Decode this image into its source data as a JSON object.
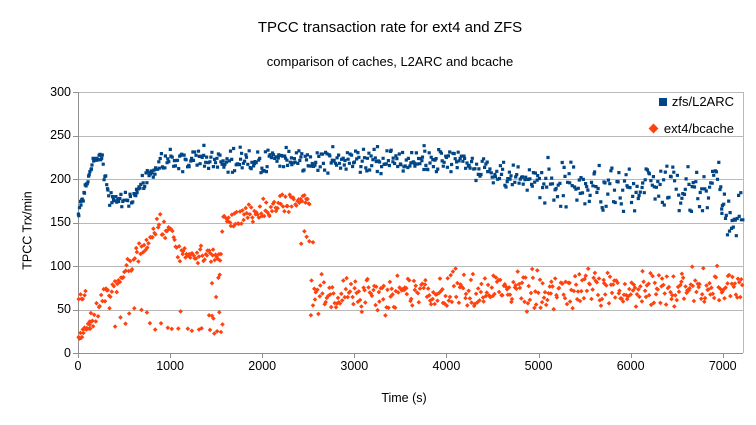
{
  "title": "TPCC transaction rate for ext4 and ZFS",
  "subtitle": "comparison of caches, L2ARC and bcache",
  "chart_data": {
    "type": "scatter",
    "title": "TPCC transaction rate for ext4 and ZFS",
    "subtitle": "comparison of caches, L2ARC and bcache",
    "xlabel": "Time (s)",
    "ylabel": "TPCC Trx/min",
    "xlim": [
      0,
      7220
    ],
    "ylim": [
      0,
      300
    ],
    "x_ticks": [
      0,
      1000,
      2000,
      3000,
      4000,
      5000,
      6000,
      7000
    ],
    "y_ticks": [
      0,
      50,
      100,
      150,
      200,
      250,
      300
    ],
    "grid": "horizontal-only",
    "grid_color": "#b9b9b9",
    "axis_color": "#8f8f8f",
    "background_color": "#ffffff",
    "legend_position": "top-right-inside",
    "seed": 13,
    "series": [
      {
        "name": "zfs/L2ARC",
        "marker": "square",
        "color": "#004586",
        "summary": "starts ~160-185, climbs to ~225 by t=250s, dips to ~165-190 t=300-600s, recovers to steady band 205-238 (mean ~222) from t=900-4300s, declines to ~195 by t=5000s, spreads 150-225 t=5000-7000s, drops to 125-200 at t=7000-7220s",
        "segments": [
          {
            "t0": 0,
            "t1": 60,
            "n": 8,
            "v0": 163,
            "v1": 180,
            "j": 8
          },
          {
            "t0": 60,
            "t1": 150,
            "n": 12,
            "v0": 186,
            "v1": 214,
            "j": 6
          },
          {
            "t0": 150,
            "t1": 270,
            "n": 14,
            "v0": 219,
            "v1": 226,
            "j": 5
          },
          {
            "t0": 270,
            "t1": 340,
            "n": 8,
            "v0": 212,
            "v1": 182,
            "j": 8
          },
          {
            "t0": 340,
            "t1": 620,
            "n": 26,
            "v0": 174,
            "v1": 179,
            "j": 11
          },
          {
            "t0": 620,
            "t1": 900,
            "n": 28,
            "v0": 186,
            "v1": 218,
            "j": 10
          },
          {
            "t0": 900,
            "t1": 4300,
            "n": 290,
            "v0": 221,
            "v1": 221,
            "j": 16
          },
          {
            "t0": 1000,
            "t1": 4200,
            "n": 6,
            "v0": 237,
            "v1": 237,
            "j": 3
          },
          {
            "t0": 4300,
            "t1": 5000,
            "n": 58,
            "v0": 214,
            "v1": 197,
            "j": 16
          },
          {
            "t0": 5000,
            "t1": 6300,
            "n": 105,
            "v0": 195,
            "v1": 191,
            "j": 32
          },
          {
            "t0": 6300,
            "t1": 7000,
            "n": 56,
            "v0": 190,
            "v1": 186,
            "j": 36
          },
          {
            "t0": 6980,
            "t1": 7220,
            "n": 22,
            "v0": 166,
            "v1": 158,
            "j": 34
          }
        ]
      },
      {
        "name": "ext4/bcache",
        "marker": "diamond",
        "color": "#FF420E",
        "summary": "starts ~20-35 (a few ~60), ramps to ~150-160 by t=900s with low stragglers 25-55, plateau ~105-125 t=1100-1550s, jumps to 145-195 band t=1600-2500s, then steady low band 42-103 (mean ~72) from t=2560-7220s",
        "segments": [
          {
            "t0": 0,
            "t1": 90,
            "n": 6,
            "v0": 60,
            "v1": 66,
            "j": 9
          },
          {
            "t0": 0,
            "t1": 150,
            "n": 16,
            "v0": 22,
            "v1": 30,
            "j": 10
          },
          {
            "t0": 120,
            "t1": 900,
            "n": 62,
            "v0": 36,
            "v1": 150,
            "j": 15
          },
          {
            "t0": 300,
            "t1": 1560,
            "n": 22,
            "v0": 42,
            "v1": 40,
            "j": 16,
            "dist": "u"
          },
          {
            "t0": 900,
            "t1": 1080,
            "n": 14,
            "v0": 146,
            "v1": 128,
            "j": 13
          },
          {
            "t0": 1080,
            "t1": 1560,
            "n": 40,
            "v0": 115,
            "v1": 112,
            "j": 11
          },
          {
            "t0": 1430,
            "t1": 1580,
            "n": 10,
            "v0": 58,
            "v1": 55,
            "j": 35,
            "dist": "u"
          },
          {
            "t0": 1560,
            "t1": 2520,
            "n": 80,
            "v0": 152,
            "v1": 180,
            "j": 14
          },
          {
            "t0": 2400,
            "t1": 2560,
            "n": 5,
            "v0": 133,
            "v1": 128,
            "j": 10
          },
          {
            "t0": 2520,
            "t1": 7220,
            "n": 395,
            "v0": 68,
            "v1": 75,
            "j": 28
          }
        ]
      }
    ]
  }
}
